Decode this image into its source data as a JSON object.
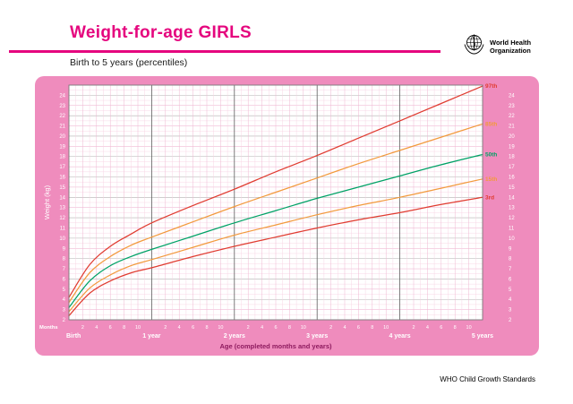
{
  "header": {
    "title": "Weight-for-age GIRLS",
    "subtitle": "Birth to 5 years (percentiles)",
    "logo": {
      "line1": "World Health",
      "line2": "Organization"
    }
  },
  "footer": {
    "credit": "WHO Child Growth Standards"
  },
  "colors": {
    "panel_pink": "#ef8cbd",
    "title_magenta": "#e5067e",
    "axis_title_maroon": "#8d1a5e",
    "percentile_red": "#e03c31",
    "percentile_orange": "#f29a3d",
    "percentile_green": "#00a266"
  },
  "chart_data": {
    "type": "line",
    "title": "Weight-for-age GIRLS",
    "subtitle": "Birth to 5 years (percentiles)",
    "xlabel": "Age (completed months and years)",
    "ylabel": "Weight (kg)",
    "x_unit_label": "Months",
    "x_months": [
      0,
      3,
      6,
      9,
      12,
      18,
      24,
      30,
      36,
      42,
      48,
      54,
      60
    ],
    "xlim": [
      0,
      60
    ],
    "ylim": [
      2,
      25
    ],
    "grid": true,
    "legend_position": "right-of-line-ends",
    "y_tick_labels": [
      2,
      3,
      4,
      5,
      6,
      7,
      8,
      9,
      10,
      11,
      12,
      13,
      14,
      15,
      16,
      17,
      18,
      19,
      20,
      21,
      22,
      23,
      24
    ],
    "x_month_tick_labels": [
      2,
      4,
      6,
      8,
      10
    ],
    "x_year_labels": [
      {
        "month": 0,
        "label": "Birth"
      },
      {
        "month": 12,
        "label": "1 year"
      },
      {
        "month": 24,
        "label": "2 years"
      },
      {
        "month": 36,
        "label": "3 years"
      },
      {
        "month": 48,
        "label": "4 years"
      },
      {
        "month": 60,
        "label": "5 years"
      }
    ],
    "series": [
      {
        "name": "97th",
        "color": "#e03c31",
        "values": [
          4.2,
          7.4,
          9.2,
          10.4,
          11.5,
          13.2,
          14.8,
          16.5,
          18.1,
          19.8,
          21.5,
          23.2,
          24.9
        ]
      },
      {
        "name": "85th",
        "color": "#f29a3d",
        "values": [
          3.7,
          6.6,
          8.2,
          9.3,
          10.1,
          11.6,
          13.1,
          14.5,
          15.9,
          17.3,
          18.6,
          19.9,
          21.2
        ]
      },
      {
        "name": "50th",
        "color": "#00a266",
        "values": [
          3.2,
          5.8,
          7.3,
          8.2,
          8.9,
          10.2,
          11.5,
          12.7,
          13.9,
          15.0,
          16.1,
          17.2,
          18.2
        ]
      },
      {
        "name": "15th",
        "color": "#f29a3d",
        "values": [
          2.8,
          5.1,
          6.4,
          7.3,
          7.9,
          9.1,
          10.3,
          11.3,
          12.3,
          13.2,
          14.0,
          14.9,
          15.8
        ]
      },
      {
        "name": "3rd",
        "color": "#e03c31",
        "values": [
          2.4,
          4.6,
          5.8,
          6.6,
          7.1,
          8.2,
          9.2,
          10.1,
          11.0,
          11.8,
          12.5,
          13.3,
          14.0
        ]
      }
    ]
  }
}
